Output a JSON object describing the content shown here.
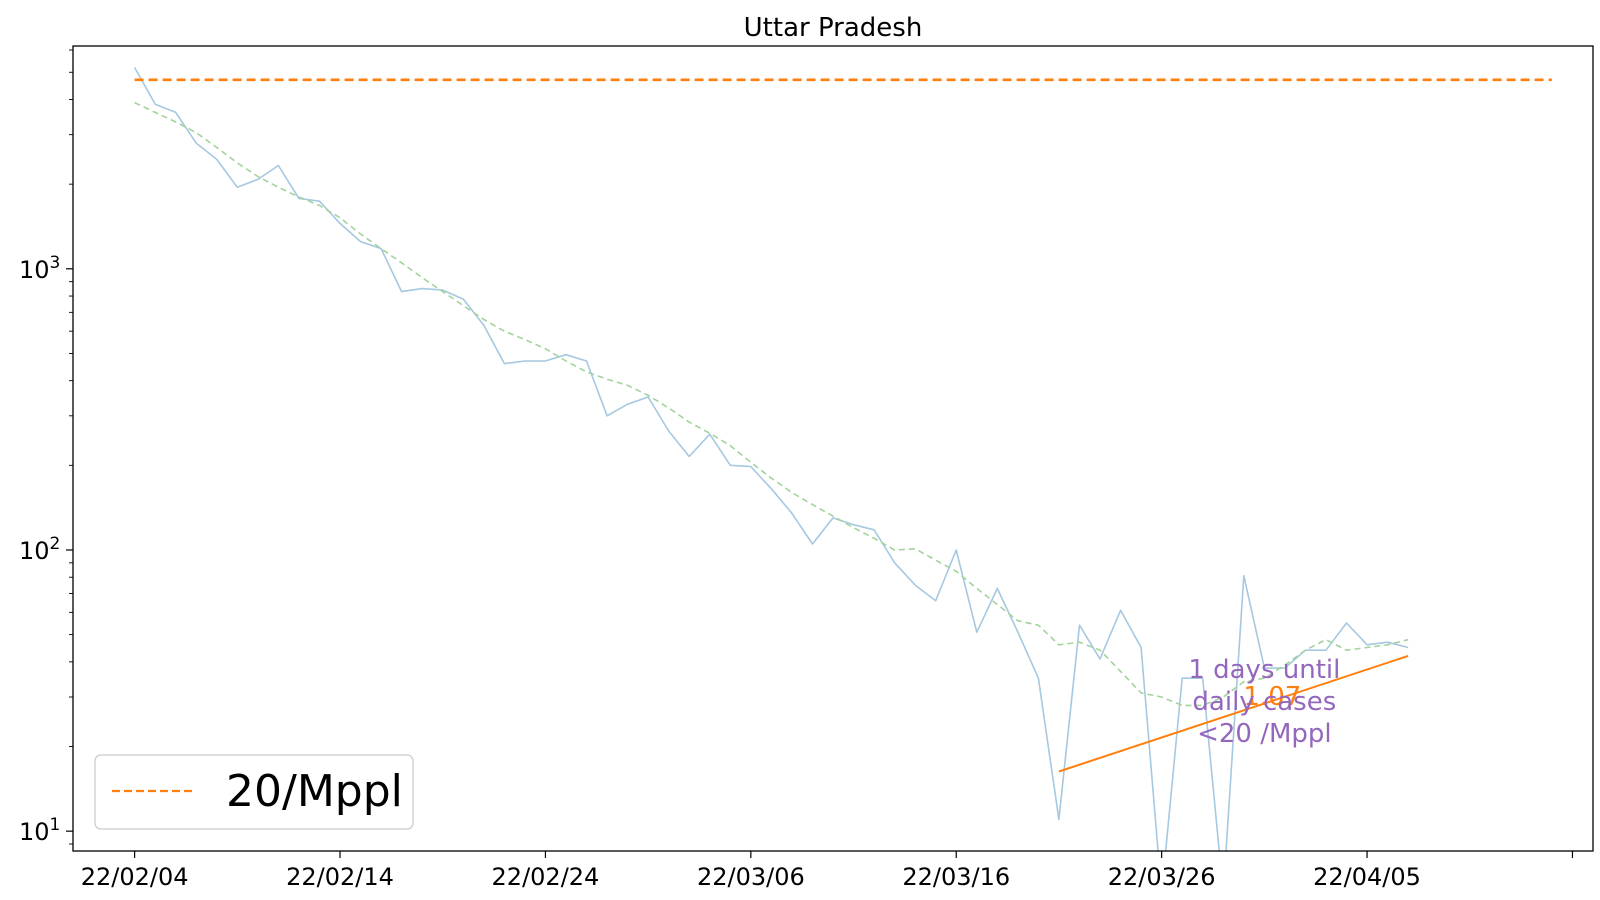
{
  "chart_data": {
    "type": "line",
    "title": "Uttar Pradesh",
    "xlabel": "",
    "ylabel": "",
    "yscale": "log",
    "xlim": [
      "2022-02-01",
      "2022-04-16"
    ],
    "ylim": [
      8.5,
      6200
    ],
    "x_tick_labels": [
      "22/02/04",
      "22/02/14",
      "22/02/24",
      "22/03/06",
      "22/03/16",
      "22/03/26",
      "22/04/05",
      ""
    ],
    "x_tick_dates": [
      "2022-02-04",
      "2022-02-14",
      "2022-02-24",
      "2022-03-06",
      "2022-03-16",
      "2022-03-26",
      "2022-04-05",
      "2022-04-15"
    ],
    "y_ticks": [
      {
        "value": 10,
        "base": "10",
        "exp": "1"
      },
      {
        "value": 100,
        "base": "10",
        "exp": "2"
      },
      {
        "value": 1000,
        "base": "10",
        "exp": "3"
      }
    ],
    "grid": false,
    "legend": {
      "position": "lower-left",
      "entries": [
        "20/Mppl"
      ]
    },
    "series": [
      {
        "role": "daily",
        "color": "#a6c8e0",
        "style": "solid",
        "points": [
          [
            "2022-02-04",
            5200
          ],
          [
            "2022-02-05",
            3850
          ],
          [
            "2022-02-06",
            3600
          ],
          [
            "2022-02-07",
            2800
          ],
          [
            "2022-02-08",
            2450
          ],
          [
            "2022-02-09",
            1950
          ],
          [
            "2022-02-10",
            2080
          ],
          [
            "2022-02-11",
            2330
          ],
          [
            "2022-02-12",
            1780
          ],
          [
            "2022-02-13",
            1740
          ],
          [
            "2022-02-14",
            1450
          ],
          [
            "2022-02-15",
            1250
          ],
          [
            "2022-02-16",
            1180
          ],
          [
            "2022-02-17",
            830
          ],
          [
            "2022-02-18",
            850
          ],
          [
            "2022-02-19",
            840
          ],
          [
            "2022-02-20",
            780
          ],
          [
            "2022-02-21",
            630
          ],
          [
            "2022-02-22",
            460
          ],
          [
            "2022-02-23",
            470
          ],
          [
            "2022-02-24",
            470
          ],
          [
            "2022-02-25",
            495
          ],
          [
            "2022-02-26",
            470
          ],
          [
            "2022-02-27",
            300
          ],
          [
            "2022-02-28",
            330
          ],
          [
            "2022-03-01",
            350
          ],
          [
            "2022-03-02",
            265
          ],
          [
            "2022-03-03",
            215
          ],
          [
            "2022-03-04",
            258
          ],
          [
            "2022-03-05",
            200
          ],
          [
            "2022-03-06",
            198
          ],
          [
            "2022-03-07",
            165
          ],
          [
            "2022-03-08",
            135
          ],
          [
            "2022-03-09",
            105
          ],
          [
            "2022-03-10",
            130
          ],
          [
            "2022-03-11",
            123
          ],
          [
            "2022-03-12",
            118
          ],
          [
            "2022-03-13",
            90
          ],
          [
            "2022-03-14",
            75
          ],
          [
            "2022-03-15",
            66
          ],
          [
            "2022-03-16",
            100
          ],
          [
            "2022-03-17",
            51
          ],
          [
            "2022-03-18",
            73
          ],
          [
            "2022-03-19",
            51
          ],
          [
            "2022-03-20",
            35
          ],
          [
            "2022-03-21",
            11
          ],
          [
            "2022-03-22",
            54
          ],
          [
            "2022-03-23",
            41
          ],
          [
            "2022-03-24",
            61
          ],
          [
            "2022-03-25",
            45
          ],
          [
            "2022-03-26",
            6
          ],
          [
            "2022-03-27",
            35
          ],
          [
            "2022-03-28",
            35
          ],
          [
            "2022-03-29",
            6
          ],
          [
            "2022-03-30",
            81
          ],
          [
            "2022-03-31",
            38
          ],
          [
            "2022-04-01",
            38
          ],
          [
            "2022-04-02",
            44
          ],
          [
            "2022-04-03",
            44
          ],
          [
            "2022-04-04",
            55
          ],
          [
            "2022-04-05",
            46
          ],
          [
            "2022-04-06",
            47
          ],
          [
            "2022-04-07",
            45
          ]
        ]
      },
      {
        "role": "smoothed",
        "color": "#a3d39c",
        "style": "dashed",
        "points": [
          [
            "2022-02-04",
            3900
          ],
          [
            "2022-02-05",
            3600
          ],
          [
            "2022-02-06",
            3330
          ],
          [
            "2022-02-07",
            3050
          ],
          [
            "2022-02-08",
            2700
          ],
          [
            "2022-02-09",
            2380
          ],
          [
            "2022-02-10",
            2130
          ],
          [
            "2022-02-11",
            1950
          ],
          [
            "2022-02-12",
            1800
          ],
          [
            "2022-02-13",
            1680
          ],
          [
            "2022-02-14",
            1520
          ],
          [
            "2022-02-15",
            1330
          ],
          [
            "2022-02-16",
            1180
          ],
          [
            "2022-02-17",
            1050
          ],
          [
            "2022-02-18",
            930
          ],
          [
            "2022-02-19",
            830
          ],
          [
            "2022-02-20",
            740
          ],
          [
            "2022-02-21",
            660
          ],
          [
            "2022-02-22",
            600
          ],
          [
            "2022-02-23",
            560
          ],
          [
            "2022-02-24",
            520
          ],
          [
            "2022-02-25",
            470
          ],
          [
            "2022-02-26",
            430
          ],
          [
            "2022-02-27",
            405
          ],
          [
            "2022-02-28",
            385
          ],
          [
            "2022-03-01",
            355
          ],
          [
            "2022-03-02",
            320
          ],
          [
            "2022-03-03",
            285
          ],
          [
            "2022-03-04",
            260
          ],
          [
            "2022-03-05",
            235
          ],
          [
            "2022-03-06",
            205
          ],
          [
            "2022-03-07",
            180
          ],
          [
            "2022-03-08",
            160
          ],
          [
            "2022-03-09",
            145
          ],
          [
            "2022-03-10",
            132
          ],
          [
            "2022-03-11",
            120
          ],
          [
            "2022-03-12",
            110
          ],
          [
            "2022-03-13",
            100
          ],
          [
            "2022-03-14",
            101
          ],
          [
            "2022-03-15",
            92
          ],
          [
            "2022-03-16",
            84
          ],
          [
            "2022-03-17",
            73
          ],
          [
            "2022-03-18",
            64
          ],
          [
            "2022-03-19",
            56
          ],
          [
            "2022-03-20",
            54
          ],
          [
            "2022-03-21",
            46
          ],
          [
            "2022-03-22",
            47
          ],
          [
            "2022-03-23",
            44
          ],
          [
            "2022-03-24",
            37
          ],
          [
            "2022-03-25",
            31
          ],
          [
            "2022-03-26",
            30
          ],
          [
            "2022-03-27",
            28
          ],
          [
            "2022-03-28",
            28
          ],
          [
            "2022-03-29",
            30
          ],
          [
            "2022-03-30",
            34
          ],
          [
            "2022-03-31",
            35
          ],
          [
            "2022-04-01",
            39
          ],
          [
            "2022-04-02",
            44
          ],
          [
            "2022-04-03",
            48
          ],
          [
            "2022-04-04",
            44
          ],
          [
            "2022-04-05",
            45
          ],
          [
            "2022-04-06",
            46
          ],
          [
            "2022-04-07",
            48
          ]
        ]
      },
      {
        "role": "fit",
        "color": "#ff7f0e",
        "style": "solid",
        "points": [
          [
            "2022-03-21",
            16.3
          ],
          [
            "2022-04-07",
            42
          ]
        ]
      },
      {
        "role": "threshold",
        "name": "20/Mppl",
        "color": "#ff7f0e",
        "style": "dashed",
        "points": [
          [
            "2022-02-04",
            4700
          ],
          [
            "2022-04-14",
            4700
          ]
        ]
      }
    ],
    "annotations": [
      {
        "role": "fit-label",
        "text": "1.07",
        "x": "2022-03-31",
        "y": 31,
        "color": "#ff7f0e"
      },
      {
        "role": "days-label",
        "lines": [
          "1 days until",
          "daily cases",
          "<20 /Mppl"
        ],
        "x": "2022-03-31",
        "y": 27,
        "color": "#9467bd"
      }
    ]
  }
}
